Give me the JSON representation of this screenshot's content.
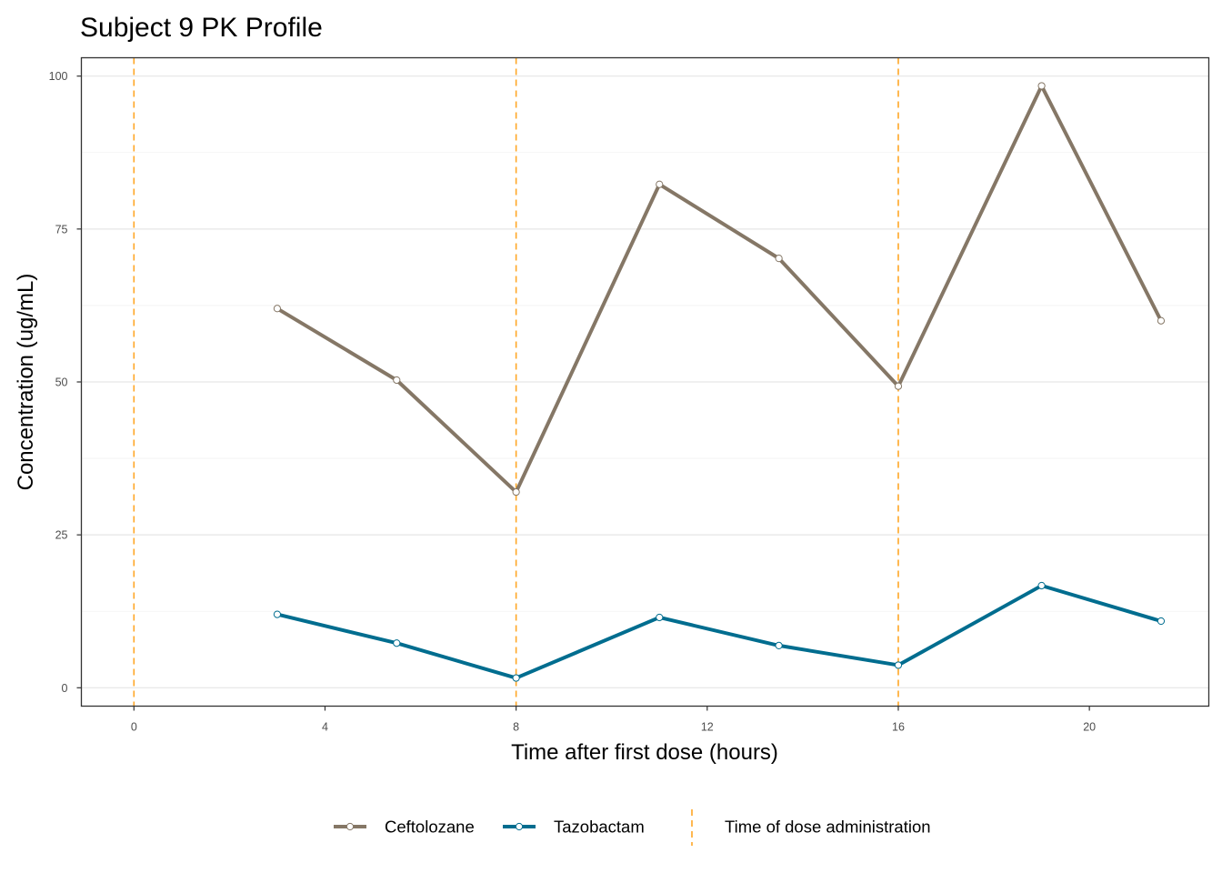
{
  "chart_data": {
    "type": "line",
    "title": "Subject 9 PK Profile",
    "xlabel": "Time after first dose (hours)",
    "ylabel": "Concentration (ug/mL)",
    "xlim": [
      -1.1,
      22.5
    ],
    "ylim": [
      -3,
      103
    ],
    "x_ticks": [
      0,
      4,
      8,
      12,
      16,
      20
    ],
    "y_ticks": [
      0,
      25,
      50,
      75,
      100
    ],
    "grid": true,
    "series": [
      {
        "name": "Ceftolozane",
        "color": "#857766",
        "x": [
          3,
          5.5,
          8,
          11,
          13.5,
          16,
          19,
          21.5
        ],
        "y": [
          62,
          50.3,
          32,
          82.3,
          70.2,
          49.3,
          98.4,
          60
        ]
      },
      {
        "name": "Tazobactam",
        "color": "#006d8f",
        "x": [
          3,
          5.5,
          8,
          11,
          13.5,
          16,
          19,
          21.5
        ],
        "y": [
          12,
          7.3,
          1.6,
          11.5,
          6.9,
          3.7,
          16.7,
          10.9
        ]
      }
    ],
    "dose_times": [
      0,
      8,
      16
    ],
    "dose_line_color": "#ffa726",
    "dose_label": "Time of dose administration",
    "legend_position": "bottom"
  }
}
